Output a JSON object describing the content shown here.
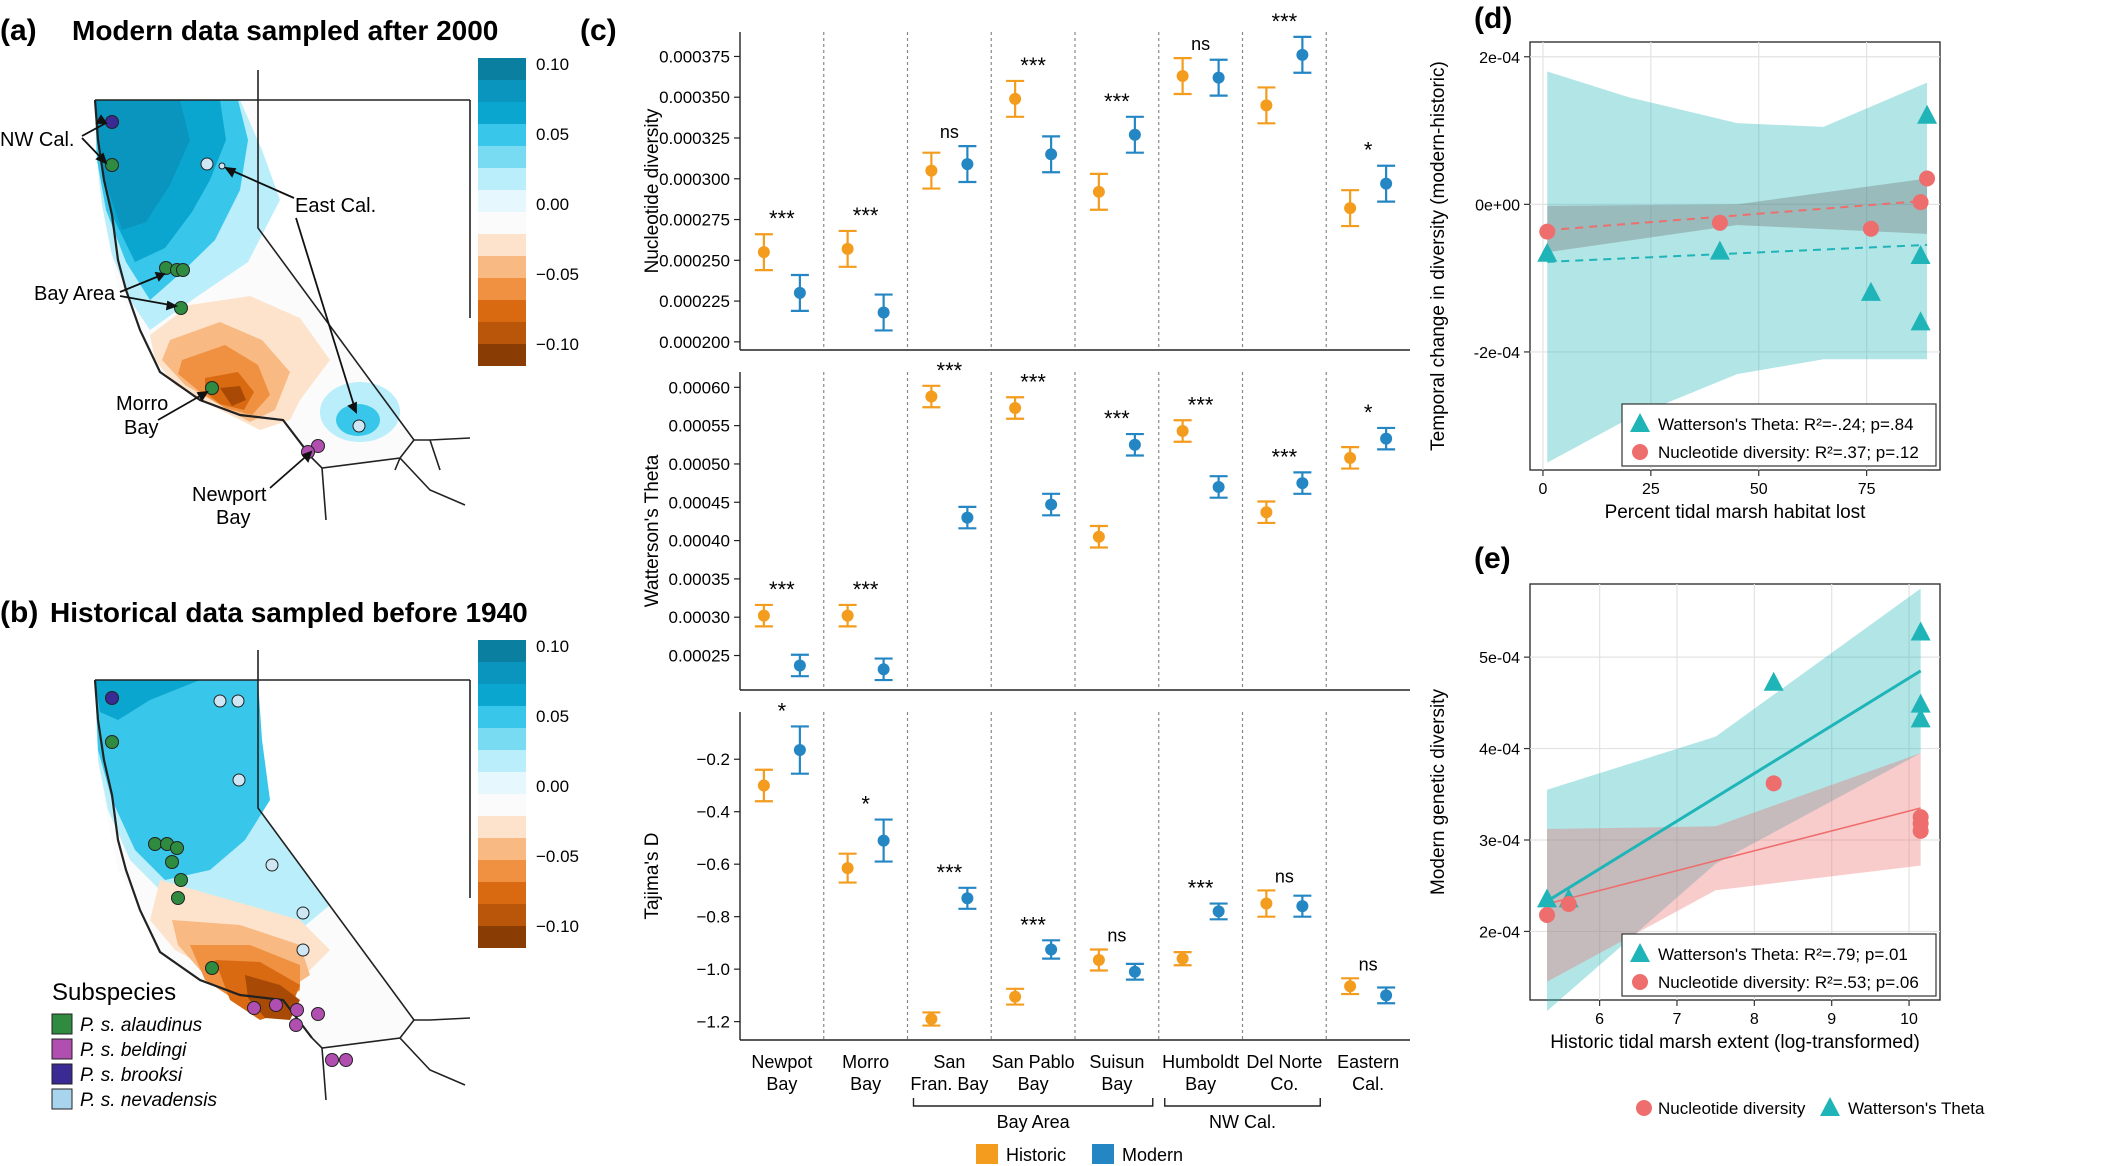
{
  "panels": {
    "a": {
      "letter": "(a)",
      "title": "Modern data sampled after 2000",
      "labels": {
        "nw": "NW Cal.",
        "east": "East Cal.",
        "bay": "Bay Area",
        "morro": "Morro Bay",
        "newport": "Newport Bay"
      }
    },
    "b": {
      "letter": "(b)",
      "title": "Historical data sampled before 1940"
    },
    "c": {
      "letter": "(c)"
    },
    "d": {
      "letter": "(d)"
    },
    "e": {
      "letter": "(e)"
    }
  },
  "colorbar": {
    "ticks": [
      "0.10",
      "0.05",
      "0.00",
      "−0.05",
      "−0.10"
    ]
  },
  "subspecies_legend": {
    "title": "Subspecies",
    "items": [
      {
        "label": "P. s. alaudinus",
        "color": "#2e8b3f"
      },
      {
        "label": "P. s. beldingi",
        "color": "#b04fb0"
      },
      {
        "label": "P. s. brooksi",
        "color": "#3a2a94"
      },
      {
        "label": "P. s. nevadensis",
        "color": "#a9d4ee"
      }
    ]
  },
  "colors": {
    "historic": "#f39c1e",
    "modern": "#2586c4",
    "theta": "#1fb5b8",
    "nucleotide": "#ee6e6e"
  },
  "chart_data": [
    {
      "type": "scatter",
      "panel": "c",
      "categories": [
        "Newpot Bay",
        "Morro Bay",
        "San Fran. Bay",
        "San Pablo Bay",
        "Suisun Bay",
        "Humboldt Bay",
        "Del Norte Co.",
        "Eastern Cal."
      ],
      "category_lines": [
        [
          "Newpot",
          "Bay"
        ],
        [
          "Morro",
          "Bay"
        ],
        [
          "San",
          "Fran. Bay"
        ],
        [
          "San Pablo",
          "Bay"
        ],
        [
          "Suisun",
          "Bay"
        ],
        [
          "Humboldt",
          "Bay"
        ],
        [
          "Del Norte",
          "Co."
        ],
        [
          "Eastern",
          "Cal."
        ]
      ],
      "groups": [
        {
          "label": "Bay Area",
          "from": 2,
          "to": 4
        },
        {
          "label": "NW Cal.",
          "from": 5,
          "to": 6
        }
      ],
      "legend": [
        "Historic",
        "Modern"
      ],
      "rows": [
        {
          "ylabel": "Nucleotide diversity",
          "ticks": [
            "0.000375",
            "0.000350",
            "0.000325",
            "0.000300",
            "0.000275",
            "0.000250",
            "0.000225",
            "0.000200"
          ],
          "tick_values": [
            0.000375,
            0.00035,
            0.000325,
            0.0003,
            0.000275,
            0.00025,
            0.000225,
            0.0002
          ],
          "ylim": [
            0.000195,
            0.00039
          ],
          "historic": [
            0.000255,
            0.000257,
            0.000305,
            0.000349,
            0.000292,
            0.000363,
            0.000345,
            0.000282
          ],
          "modern": [
            0.00023,
            0.000218,
            0.000309,
            0.000315,
            0.000327,
            0.000362,
            0.000376,
            0.000297
          ],
          "err": 1.1e-05,
          "sig": [
            "***",
            "***",
            "ns",
            "***",
            "***",
            "ns",
            "***",
            "*"
          ]
        },
        {
          "ylabel": "Watterson's Theta",
          "ticks": [
            "0.00060",
            "0.00055",
            "0.00050",
            "0.00045",
            "0.00040",
            "0.00035",
            "0.00030",
            "0.00025"
          ],
          "tick_values": [
            0.0006,
            0.00055,
            0.0005,
            0.00045,
            0.0004,
            0.00035,
            0.0003,
            0.00025
          ],
          "ylim": [
            0.000205,
            0.00062
          ],
          "historic": [
            0.000302,
            0.000302,
            0.000588,
            0.000573,
            0.000405,
            0.000543,
            0.000437,
            0.000508
          ],
          "modern": [
            0.000237,
            0.000232,
            0.00043,
            0.000447,
            0.000525,
            0.00047,
            0.000475,
            0.000533
          ],
          "err": 1.4e-05,
          "sig": [
            "***",
            "***",
            "***",
            "***",
            "***",
            "***",
            "***",
            "*"
          ]
        },
        {
          "ylabel": "Tajima's D",
          "ticks": [
            "−0.2",
            "−0.4",
            "−0.6",
            "−0.8",
            "−1.0",
            "−1.2"
          ],
          "tick_values": [
            -0.2,
            -0.4,
            -0.6,
            -0.8,
            -1.0,
            -1.2
          ],
          "ylim": [
            -1.27,
            -0.02
          ],
          "historic": [
            -0.3,
            -0.615,
            -1.19,
            -1.105,
            -0.965,
            -0.96,
            -0.75,
            -1.065
          ],
          "modern": [
            -0.165,
            -0.51,
            -0.73,
            -0.925,
            -1.01,
            -0.78,
            -0.76,
            -1.1
          ],
          "err": [
            [
              0.06,
              0.09
            ],
            [
              0.055,
              0.08
            ],
            [
              0.025,
              0.04
            ],
            [
              0.03,
              0.035
            ],
            [
              0.04,
              0.03
            ],
            [
              0.025,
              0.03
            ],
            [
              0.05,
              0.04
            ],
            [
              0.03,
              0.03
            ]
          ],
          "sig": [
            "*",
            "*",
            "***",
            "***",
            "ns",
            "***",
            "ns",
            "ns"
          ]
        }
      ]
    },
    {
      "type": "scatter",
      "panel": "d",
      "xlabel": "Percent tidal marsh habitat lost",
      "ylabel": "Temporal change in diversity (modern-historic)",
      "xlim": [
        -3,
        92
      ],
      "ylim": [
        -0.00036,
        0.00022
      ],
      "x_ticks": [
        "0",
        "25",
        "50",
        "75"
      ],
      "x_tick_values": [
        0,
        25,
        50,
        75
      ],
      "y_ticks": [
        "2e-04",
        "0e+00",
        "-2e-04"
      ],
      "y_tick_values": [
        0.0002,
        0,
        -0.0002
      ],
      "series": [
        {
          "name": "Watterson's Theta",
          "marker": "triangle",
          "x": [
            1,
            41,
            76,
            87.5,
            87.5,
            89
          ],
          "y": [
            -6.7e-05,
            -6.4e-05,
            -0.00012,
            -7e-05,
            -0.00016,
            0.00012
          ],
          "fit": [
            [
              1,
              -7.8e-05
            ],
            [
              89,
              -5.5e-05
            ]
          ],
          "band_upper": [
            [
              1,
              0.00018
            ],
            [
              20,
              0.000145
            ],
            [
              45,
              0.00011
            ],
            [
              65,
              0.000105
            ],
            [
              89,
              0.000165
            ]
          ],
          "band_lower": [
            [
              1,
              -0.00035
            ],
            [
              20,
              -0.00029
            ],
            [
              45,
              -0.00023
            ],
            [
              65,
              -0.00021
            ],
            [
              89,
              -0.00021
            ]
          ],
          "stat": "Watterson's Theta: R²=-.24; p=.84"
        },
        {
          "name": "Nucleotide diversity",
          "marker": "circle",
          "x": [
            1,
            41,
            76,
            87.5,
            89
          ],
          "y": [
            -3.7e-05,
            -2.5e-05,
            -3.3e-05,
            3e-06,
            3.5e-05
          ],
          "fit": [
            [
              1,
              -3.5e-05
            ],
            [
              89,
              5e-06
            ]
          ],
          "band_upper": [
            [
              1,
              -2e-06
            ],
            [
              45,
              0.0
            ],
            [
              89,
              3.5e-05
            ]
          ],
          "band_lower": [
            [
              1,
              -6.5e-05
            ],
            [
              45,
              -2.8e-05
            ],
            [
              89,
              -4e-05
            ]
          ],
          "stat": "Nucleotide diversity: R²=.37; p=.12"
        }
      ]
    },
    {
      "type": "scatter",
      "panel": "e",
      "xlabel": "Historic tidal marsh extent (log-transformed)",
      "ylabel": "Modern genetic diversity",
      "xlim": [
        5.1,
        10.4
      ],
      "ylim": [
        0.000125,
        0.00058
      ],
      "x_ticks": [
        "6",
        "7",
        "8",
        "9",
        "10"
      ],
      "x_tick_values": [
        6,
        7,
        8,
        9,
        10
      ],
      "y_ticks": [
        "5e-04",
        "4e-04",
        "3e-04",
        "2e-04"
      ],
      "y_tick_values": [
        0.0005,
        0.0004,
        0.0003,
        0.0002
      ],
      "series": [
        {
          "name": "Watterson's Theta",
          "marker": "triangle",
          "x": [
            5.32,
            5.6,
            8.25,
            10.15,
            10.15,
            10.15
          ],
          "y": [
            0.000235,
            0.000235,
            0.000472,
            0.000527,
            0.000448,
            0.000432
          ],
          "fit": [
            [
              5.32,
              0.000233
            ],
            [
              10.15,
              0.000485
            ]
          ],
          "band_upper": [
            [
              5.32,
              0.000355
            ],
            [
              7.5,
              0.000413
            ],
            [
              10.15,
              0.000575
            ]
          ],
          "band_lower": [
            [
              5.32,
              0.000113
            ],
            [
              7.5,
              0.000274
            ],
            [
              10.15,
              0.000395
            ]
          ],
          "stat": "Watterson's Theta: R²=.79; p=.01"
        },
        {
          "name": "Nucleotide diversity",
          "marker": "circle",
          "x": [
            5.32,
            5.6,
            8.25,
            10.15,
            10.15,
            10.15
          ],
          "y": [
            0.000218,
            0.00023,
            0.000362,
            0.000325,
            0.000318,
            0.00031
          ],
          "fit": [
            [
              5.32,
              0.00023
            ],
            [
              10.15,
              0.000335
            ]
          ],
          "band_upper": [
            [
              5.32,
              0.000312
            ],
            [
              7.5,
              0.000315
            ],
            [
              10.15,
              0.000395
            ]
          ],
          "band_lower": [
            [
              5.32,
              0.000145
            ],
            [
              7.5,
              0.000245
            ],
            [
              10.15,
              0.000272
            ]
          ],
          "stat": "Nucleotide diversity: R²=.53; p=.06"
        }
      ],
      "legend": [
        "Nucleotide diversity",
        "Watterson's Theta"
      ]
    }
  ]
}
